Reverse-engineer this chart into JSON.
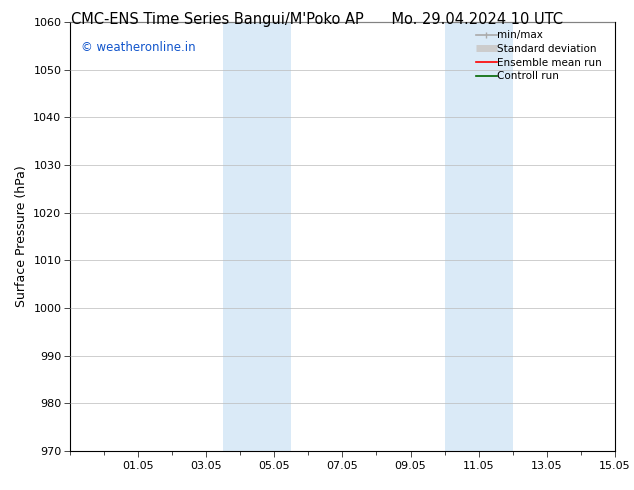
{
  "title_left": "CMC-ENS Time Series Bangui/M'Poko AP",
  "title_right": "Mo. 29.04.2024 10 UTC",
  "ylabel": "Surface Pressure (hPa)",
  "ylim": [
    970,
    1060
  ],
  "yticks": [
    970,
    980,
    990,
    1000,
    1010,
    1020,
    1030,
    1040,
    1050,
    1060
  ],
  "xlim": [
    0,
    16
  ],
  "xtick_labels": [
    "01.05",
    "03.05",
    "05.05",
    "07.05",
    "09.05",
    "11.05",
    "13.05",
    "15.05"
  ],
  "xtick_positions": [
    2,
    4,
    6,
    8,
    10,
    12,
    14,
    16
  ],
  "shaded_regions": [
    {
      "x_start": 4.5,
      "x_end": 6.5
    },
    {
      "x_start": 11.0,
      "x_end": 13.0
    }
  ],
  "shaded_color": "#daeaf7",
  "watermark_text": "© weatheronline.in",
  "watermark_color": "#1155cc",
  "legend_entries": [
    {
      "label": "min/max",
      "color": "#aaaaaa",
      "lw": 1.2
    },
    {
      "label": "Standard deviation",
      "color": "#cccccc",
      "lw": 5
    },
    {
      "label": "Ensemble mean run",
      "color": "#ff0000",
      "lw": 1.2
    },
    {
      "label": "Controll run",
      "color": "#006600",
      "lw": 1.2
    }
  ],
  "bg_color": "#ffffff",
  "grid_color": "#bbbbbb",
  "title_fontsize": 10.5,
  "ylabel_fontsize": 9,
  "tick_fontsize": 8,
  "legend_fontsize": 7.5,
  "watermark_fontsize": 8.5
}
